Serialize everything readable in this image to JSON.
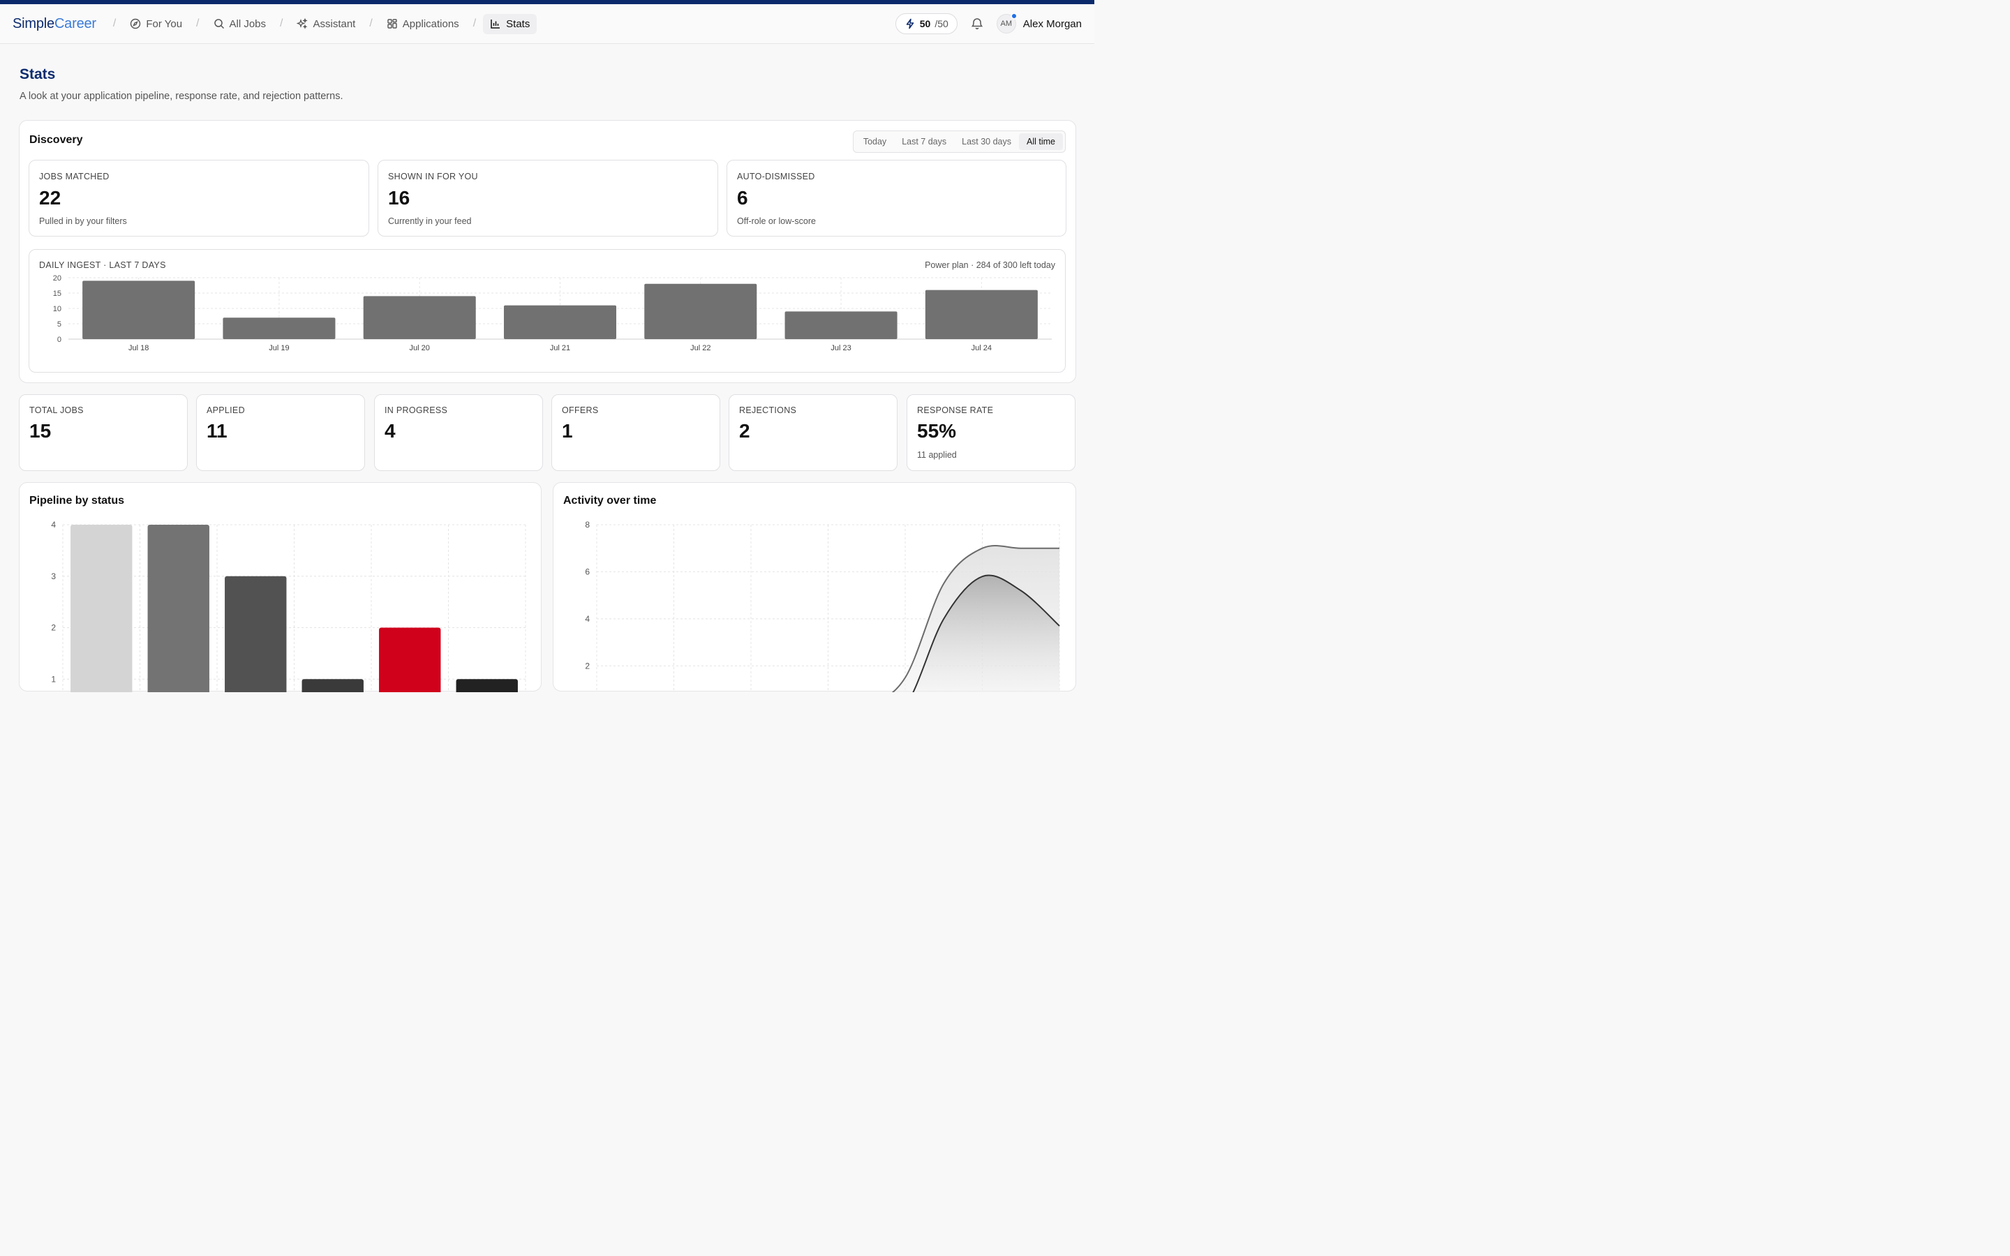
{
  "header": {
    "brand_a": "Simple",
    "brand_b": "Career",
    "nav": [
      {
        "label": "For You",
        "icon": "compass-icon"
      },
      {
        "label": "All Jobs",
        "icon": "search-icon"
      },
      {
        "label": "Assistant",
        "icon": "sparkles-icon"
      },
      {
        "label": "Applications",
        "icon": "grid-icon"
      },
      {
        "label": "Stats",
        "icon": "bar-chart-icon",
        "active": true
      }
    ],
    "credits_used": "50",
    "credits_total": "/50",
    "avatar_initials": "AM",
    "user_name": "Alex Morgan"
  },
  "page": {
    "title": "Stats",
    "subtitle": "A look at your application pipeline, response rate, and rejection patterns."
  },
  "discovery": {
    "title": "Discovery",
    "ranges": [
      "Today",
      "Last 7 days",
      "Last 30 days",
      "All time"
    ],
    "selected_range": "All time",
    "cards": [
      {
        "label": "JOBS MATCHED",
        "value": "22",
        "note": "Pulled in by your filters"
      },
      {
        "label": "SHOWN IN FOR YOU",
        "value": "16",
        "note": "Currently in your feed"
      },
      {
        "label": "AUTO-DISMISSED",
        "value": "6",
        "note": "Off-role or low-score"
      }
    ],
    "ingest": {
      "label": "DAILY INGEST · LAST 7 DAYS",
      "plan_note": "Power plan · 284 of 300 left today"
    }
  },
  "summary": [
    {
      "label": "TOTAL JOBS",
      "value": "15",
      "note": ""
    },
    {
      "label": "APPLIED",
      "value": "11",
      "note": ""
    },
    {
      "label": "IN PROGRESS",
      "value": "4",
      "note": ""
    },
    {
      "label": "OFFERS",
      "value": "1",
      "note": ""
    },
    {
      "label": "REJECTIONS",
      "value": "2",
      "note": ""
    },
    {
      "label": "RESPONSE RATE",
      "value": "55%",
      "note": "11 applied"
    }
  ],
  "panels": {
    "pipeline_title": "Pipeline by status",
    "activity_title": "Activity over time"
  },
  "colors": {
    "brand_dark": "#0d2b6e",
    "brand_light": "#3b7bd8",
    "accent_red": "#d0021b",
    "notification_dot": "#1f6fe8"
  },
  "chart_data": [
    {
      "type": "bar",
      "categories": [
        "Jul 18",
        "Jul 19",
        "Jul 20",
        "Jul 21",
        "Jul 22",
        "Jul 23",
        "Jul 24"
      ],
      "values": [
        19,
        7,
        14,
        11,
        18,
        9,
        16
      ],
      "yticks": [
        0,
        5,
        10,
        15,
        20
      ],
      "ylim": [
        0,
        20
      ],
      "grid": true,
      "bar_color": "#717171"
    },
    {
      "type": "bar",
      "categories": [
        "",
        "",
        "",
        "",
        "",
        ""
      ],
      "values": [
        4,
        4,
        3,
        1,
        2,
        1
      ],
      "colors": [
        "#d4d4d4",
        "#737373",
        "#525252",
        "#3a3a3a",
        "#d0021b",
        "#222222"
      ],
      "yticks": [
        1,
        2,
        3,
        4
      ],
      "ylim": [
        0,
        4
      ],
      "grid": true
    },
    {
      "type": "area",
      "yticks": [
        2,
        4,
        6,
        8
      ],
      "ylim": [
        0,
        8
      ],
      "grid": true,
      "series": [
        {
          "values": [
            0,
            0,
            0,
            0,
            0,
            0,
            0,
            0.3,
            1.5,
            5.5,
            7,
            7,
            7
          ]
        },
        {
          "values": [
            0,
            0,
            0,
            0,
            0,
            0,
            0,
            0,
            0.3,
            4.0,
            5.8,
            5.2,
            3.7
          ]
        }
      ]
    }
  ]
}
